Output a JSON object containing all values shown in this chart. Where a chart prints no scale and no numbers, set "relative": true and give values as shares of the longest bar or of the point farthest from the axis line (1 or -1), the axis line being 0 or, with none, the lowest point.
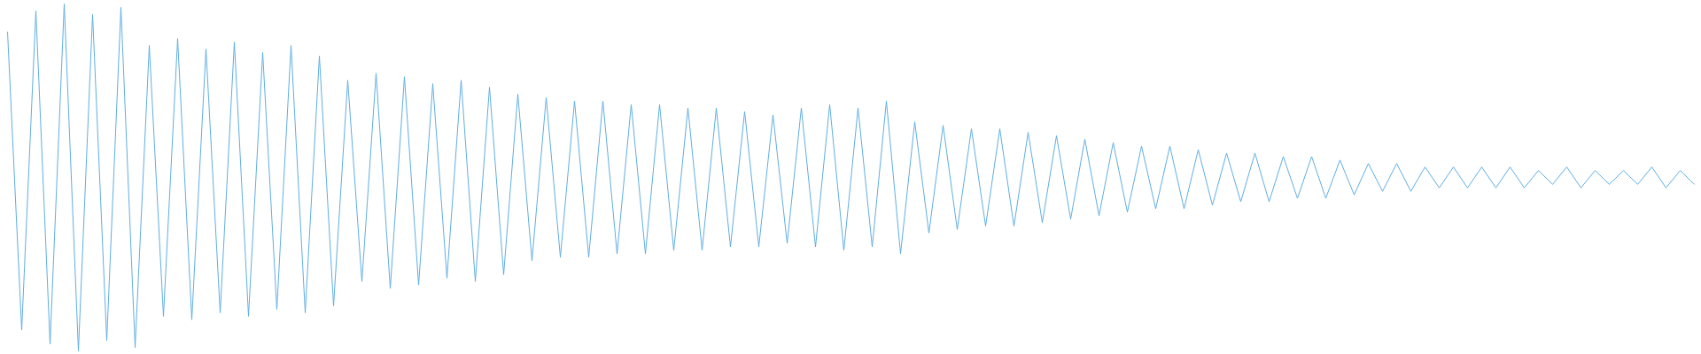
{
  "chart_data": {
    "type": "line",
    "relative": true,
    "color": "#5faee3",
    "categories": [
      null,
      null,
      null,
      null,
      null,
      null,
      null,
      null,
      null,
      null,
      null,
      null,
      null,
      null,
      null,
      null,
      null,
      null,
      null,
      null,
      null,
      null,
      null,
      null,
      null,
      null,
      null,
      null,
      null,
      null,
      null,
      null,
      null,
      null,
      null,
      null,
      null,
      null,
      null,
      null,
      null,
      null,
      null,
      null,
      null,
      null,
      null,
      null,
      null,
      null,
      null,
      null,
      null,
      null,
      null,
      null,
      null,
      null,
      null,
      null,
      null,
      null,
      null,
      null,
      null,
      null,
      null,
      null,
      null,
      null,
      null,
      null,
      null,
      null,
      null,
      null,
      null,
      null,
      null,
      null,
      null,
      null,
      null,
      null,
      null,
      null,
      null,
      null,
      null,
      null,
      null,
      null,
      null,
      null,
      null,
      null,
      null,
      null,
      null,
      null,
      null,
      null,
      null,
      null,
      null,
      null,
      null,
      null,
      null,
      null,
      null,
      null,
      null,
      null,
      null,
      null,
      null,
      null,
      null,
      null
    ],
    "values": [
      0.92,
      0.06,
      0.98,
      0.02,
      1.0,
      0,
      0.97,
      0.03,
      0.99,
      0.01,
      0.88,
      0.1,
      0.9,
      0.09,
      0.87,
      0.11,
      0.89,
      0.1,
      0.86,
      0.12,
      0.88,
      0.11,
      0.85,
      0.13,
      0.78,
      0.2,
      0.8,
      0.18,
      0.79,
      0.19,
      0.77,
      0.21,
      0.78,
      0.2,
      0.76,
      0.22,
      0.74,
      0.26,
      0.73,
      0.27,
      0.72,
      0.27,
      0.72,
      0.28,
      0.71,
      0.28,
      0.71,
      0.29,
      0.7,
      0.29,
      0.7,
      0.3,
      0.69,
      0.3,
      0.68,
      0.31,
      0.7,
      0.3,
      0.71,
      0.29,
      0.7,
      0.3,
      0.72,
      0.28,
      0.66,
      0.34,
      0.65,
      0.35,
      0.64,
      0.36,
      0.64,
      0.36,
      0.63,
      0.37,
      0.62,
      0.38,
      0.61,
      0.39,
      0.6,
      0.4,
      0.59,
      0.41,
      0.59,
      0.41,
      0.58,
      0.42,
      0.57,
      0.43,
      0.57,
      0.43,
      0.56,
      0.44,
      0.56,
      0.44,
      0.55,
      0.45,
      0.54,
      0.46,
      0.54,
      0.46,
      0.53,
      0.47,
      0.53,
      0.47,
      0.53,
      0.47,
      0.53,
      0.47,
      0.52,
      0.48,
      0.53,
      0.47,
      0.52,
      0.48,
      0.52,
      0.48,
      0.53,
      0.47,
      0.52,
      0.48
    ]
  }
}
